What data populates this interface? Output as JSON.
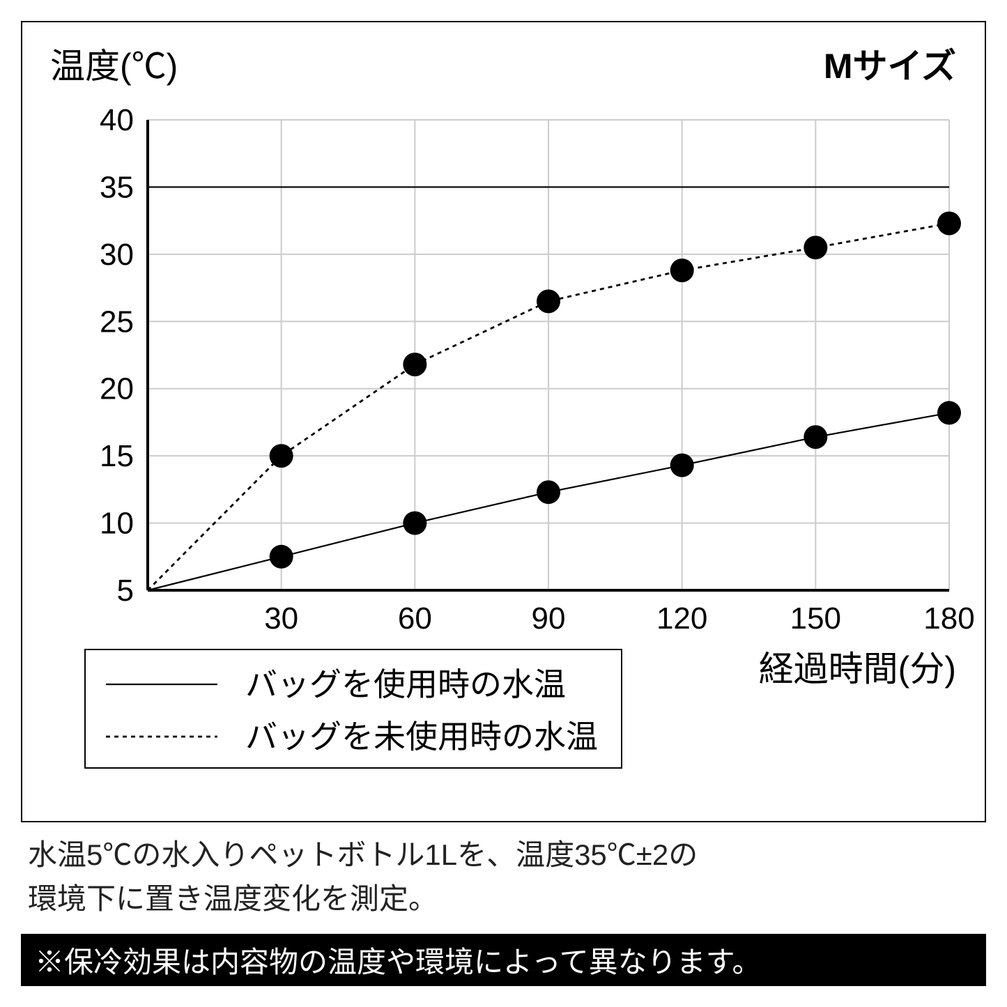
{
  "chart": {
    "type": "line",
    "y_axis_title": "温度(℃)",
    "x_axis_title": "経過時間(分)",
    "size_label": "Mサイズ",
    "y_ticks": [
      "5",
      "10",
      "15",
      "20",
      "25",
      "30",
      "35",
      "40"
    ],
    "x_ticks": [
      "30",
      "60",
      "90",
      "120",
      "150",
      "180"
    ],
    "y_min": 5,
    "y_max": 40,
    "x_min": 0,
    "x_max": 180,
    "xtick_step": 30,
    "reference_lines_y": [
      35
    ],
    "grid_color": "#cccccc",
    "axis_color": "#000000",
    "background_color": "#ffffff",
    "plot_bg": "#ffffff",
    "tick_fontsize": 44,
    "title_fontsize": 50,
    "marker_radius": 17,
    "marker_color": "#000000",
    "line_width_solid": 2.2,
    "line_width_dashed": 2.8,
    "dash_pattern": "6 6",
    "series": {
      "with_bag": {
        "label": "バッグを使用時の水温",
        "style": "solid",
        "color": "#000000",
        "points": [
          {
            "x": 0,
            "y": 5
          },
          {
            "x": 30,
            "y": 7.5
          },
          {
            "x": 60,
            "y": 10
          },
          {
            "x": 90,
            "y": 12.3
          },
          {
            "x": 120,
            "y": 14.3
          },
          {
            "x": 150,
            "y": 16.4
          },
          {
            "x": 180,
            "y": 18.2
          }
        ]
      },
      "without_bag": {
        "label": "バッグを未使用時の水温",
        "style": "dashed",
        "color": "#000000",
        "points": [
          {
            "x": 0,
            "y": 5
          },
          {
            "x": 30,
            "y": 15
          },
          {
            "x": 60,
            "y": 21.8
          },
          {
            "x": 90,
            "y": 26.5
          },
          {
            "x": 120,
            "y": 28.8
          },
          {
            "x": 150,
            "y": 30.5
          },
          {
            "x": 180,
            "y": 32.3
          }
        ]
      }
    },
    "legend": {
      "border_color": "#000000",
      "labels": {
        "solid": "バッグを使用時の水温",
        "dashed": "バッグを未使用時の水温"
      }
    }
  },
  "note_line1": "水温5℃の水入りペットボトル1Lを、温度35℃±2の",
  "note_line2": "環境下に置き温度変化を測定。",
  "disclaimer": "※保冷効果は内容物の温度や環境によって異なります。"
}
